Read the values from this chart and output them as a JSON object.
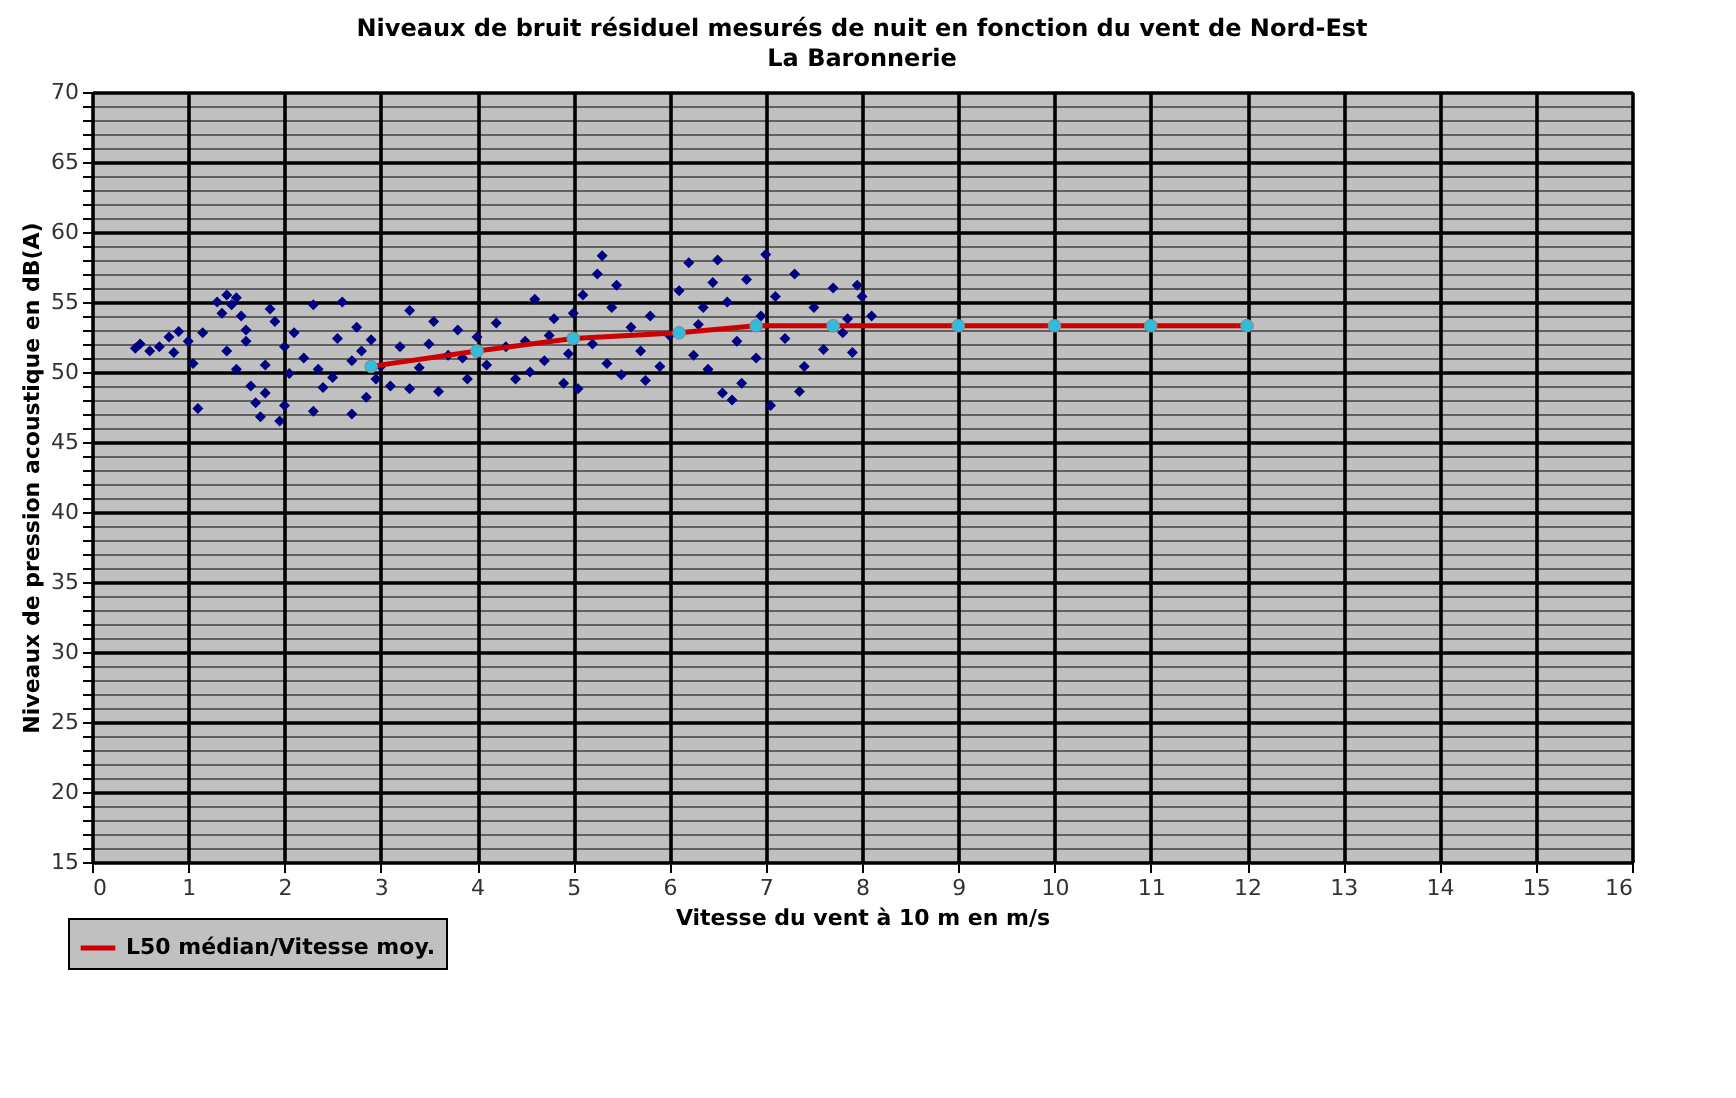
{
  "chart_data": {
    "type": "scatter",
    "title": "Niveaux de bruit  résiduel mesurés de nuit en fonction du vent de Nord-Est",
    "subtitle": "La Baronnerie",
    "xlabel": "Vitesse du vent  à 10 m en m/s",
    "ylabel": "Niveaux de pression acoustique en dB(A)",
    "xlim": [
      0,
      16
    ],
    "xticks": [
      0,
      1,
      2,
      3,
      4,
      5,
      6,
      7,
      8,
      9,
      10,
      11,
      12,
      13,
      14,
      15,
      16
    ],
    "ylim": [
      15,
      70
    ],
    "yticks": [
      15,
      {
        "value": 16,
        "label": null
      },
      {
        "value": 17,
        "label": null
      },
      {
        "value": 18,
        "label": null
      },
      {
        "value": 19,
        "label": null
      },
      20,
      {
        "value": 21,
        "label": null
      },
      {
        "value": 22,
        "label": null
      },
      {
        "value": 23,
        "label": null
      },
      {
        "value": 24,
        "label": null
      },
      25,
      {
        "value": 26,
        "label": null
      },
      {
        "value": 27,
        "label": null
      },
      {
        "value": 28,
        "label": null
      },
      {
        "value": 29,
        "label": null
      },
      30,
      {
        "value": 31,
        "label": null
      },
      {
        "value": 32,
        "label": null
      },
      {
        "value": 33,
        "label": null
      },
      {
        "value": 34,
        "label": null
      },
      35,
      {
        "value": 36,
        "label": null
      },
      {
        "value": 37,
        "label": null
      },
      {
        "value": 38,
        "label": null
      },
      {
        "value": 39,
        "label": null
      },
      40,
      {
        "value": 41,
        "label": null
      },
      {
        "value": 42,
        "label": null
      },
      {
        "value": 43,
        "label": null
      },
      {
        "value": 44,
        "label": null
      },
      45,
      {
        "value": 46,
        "label": null
      },
      {
        "value": 47,
        "label": null
      },
      {
        "value": 48,
        "label": null
      },
      {
        "value": 49,
        "label": null
      },
      50,
      {
        "value": 51,
        "label": null
      },
      {
        "value": 52,
        "label": null
      },
      {
        "value": 53,
        "label": null
      },
      {
        "value": 54,
        "label": null
      },
      55,
      {
        "value": 56,
        "label": null
      },
      {
        "value": 57,
        "label": null
      },
      {
        "value": 58,
        "label": null
      },
      {
        "value": 59,
        "label": null
      },
      60,
      {
        "value": 61,
        "label": null
      },
      {
        "value": 62,
        "label": null
      },
      {
        "value": 63,
        "label": null
      },
      {
        "value": 64,
        "label": null
      },
      65,
      {
        "value": 66,
        "label": null
      },
      {
        "value": 67,
        "label": null
      },
      {
        "value": 68,
        "label": null
      },
      {
        "value": 69,
        "label": null
      },
      70
    ],
    "grid": true,
    "legend": "bottom left",
    "series": [
      {
        "color": "#000080",
        "marker": "diamond",
        "x": [
          0.45,
          0.5,
          0.6,
          0.7,
          0.8,
          0.85,
          0.9,
          1.0,
          1.05,
          1.1,
          1.15,
          1.3,
          1.35,
          1.4,
          1.45,
          1.5,
          1.55,
          1.6,
          1.4,
          1.5,
          1.65,
          1.7,
          1.75,
          1.8,
          1.6,
          1.85,
          1.9,
          1.95,
          2.0,
          2.0,
          2.05,
          1.8,
          2.1,
          2.2,
          2.3,
          2.35,
          2.4,
          2.5,
          2.6,
          2.55,
          2.7,
          2.7,
          2.8,
          2.85,
          2.9,
          2.95,
          3.0,
          2.75,
          2.3,
          3.1,
          3.2,
          3.3,
          3.4,
          3.5,
          3.6,
          3.7,
          3.8,
          3.9,
          4.0,
          3.3,
          3.55,
          3.85,
          4.1,
          4.2,
          4.3,
          4.4,
          4.5,
          4.6,
          4.7,
          4.8,
          4.9,
          5.0,
          4.55,
          4.75,
          4.95,
          5.05,
          5.1,
          5.2,
          5.25,
          5.3,
          5.35,
          5.4,
          5.5,
          5.6,
          5.7,
          5.8,
          5.9,
          6.0,
          5.45,
          5.75,
          6.1,
          6.2,
          6.3,
          6.4,
          6.5,
          6.55,
          6.6,
          6.7,
          6.75,
          6.8,
          6.9,
          7.0,
          7.05,
          6.35,
          6.65,
          6.95,
          6.25,
          6.45,
          7.1,
          7.2,
          7.3,
          7.4,
          7.5,
          7.6,
          7.7,
          7.8,
          7.9,
          7.95,
          8.0,
          8.1,
          7.35,
          7.85
        ],
        "values": [
          51.7,
          52.0,
          51.5,
          51.8,
          52.5,
          51.4,
          52.9,
          52.2,
          50.6,
          47.4,
          52.8,
          55.0,
          54.2,
          55.5,
          54.8,
          55.3,
          54.0,
          53.0,
          51.5,
          50.2,
          49.0,
          47.8,
          46.8,
          48.5,
          52.2,
          54.5,
          53.6,
          46.5,
          47.6,
          51.8,
          49.9,
          50.5,
          52.8,
          51.0,
          54.8,
          50.2,
          48.9,
          49.6,
          55.0,
          52.4,
          47.0,
          50.8,
          51.5,
          48.2,
          52.3,
          49.5,
          50.4,
          53.2,
          47.2,
          49.0,
          51.8,
          54.4,
          50.3,
          52.0,
          48.6,
          51.2,
          53.0,
          49.5,
          52.5,
          48.8,
          53.6,
          51.0,
          50.5,
          53.5,
          51.8,
          49.5,
          52.2,
          55.2,
          50.8,
          53.8,
          49.2,
          54.2,
          50.0,
          52.6,
          51.3,
          48.8,
          55.5,
          52.0,
          57.0,
          58.3,
          50.6,
          54.6,
          49.8,
          53.2,
          51.5,
          54.0,
          50.4,
          52.6,
          56.2,
          49.4,
          55.8,
          57.8,
          53.4,
          50.2,
          58.0,
          48.5,
          55.0,
          52.2,
          49.2,
          56.6,
          51.0,
          58.4,
          47.6,
          54.6,
          48.0,
          54.0,
          51.2,
          56.4,
          55.4,
          52.4,
          57.0,
          50.4,
          54.6,
          51.6,
          56.0,
          52.8,
          51.4,
          56.2,
          55.4,
          54.0,
          48.6,
          53.8
        ]
      },
      {
        "type": "line",
        "name": "L50 médian/Vitesse moy.",
        "color": "#cc0000",
        "marker": "circle",
        "line_style": "solid",
        "colors": [
          "#33bbdd",
          "#33bbdd",
          "#33bbdd",
          "#33bbdd",
          "#33bbdd",
          "#33bbdd",
          "#33bbdd",
          "#33bbdd",
          "#33bbdd",
          "#33bbdd"
        ],
        "x": [
          2.9,
          4.0,
          5.0,
          6.1,
          6.9,
          7.7,
          9,
          10,
          11,
          12
        ],
        "values": [
          50.4,
          51.5,
          52.4,
          52.8,
          53.3,
          53.3,
          53.3,
          53.3,
          53.3,
          53.3
        ]
      }
    ]
  }
}
